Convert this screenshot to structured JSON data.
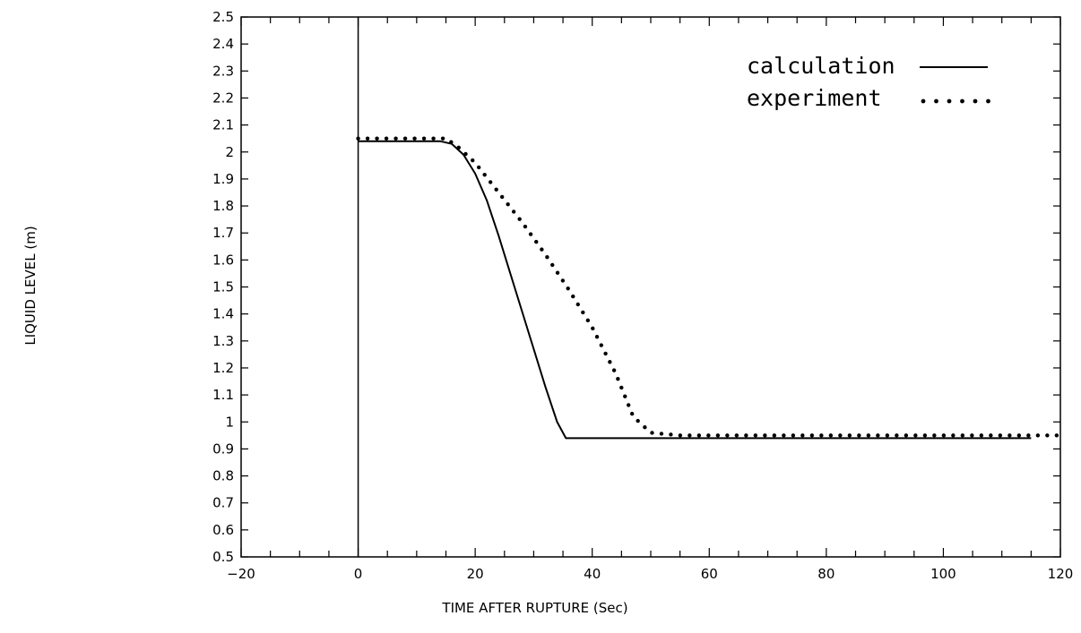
{
  "chart_data": {
    "type": "line",
    "title": "",
    "xlabel": "TIME AFTER RUPTURE (Sec)",
    "ylabel": "LIQUID LEVEL (m)",
    "xlim": [
      -20,
      120
    ],
    "ylim": [
      0.5,
      2.5
    ],
    "x_ticks": [
      "-20",
      "0",
      "20",
      "40",
      "60",
      "80",
      "100",
      "120"
    ],
    "y_ticks": [
      "0.5",
      "0.6",
      "0.7",
      "0.8",
      "0.9",
      "1",
      "1.1",
      "1.2",
      "1.3",
      "1.4",
      "1.5",
      "1.6",
      "1.7",
      "1.8",
      "1.9",
      "2",
      "2.1",
      "2.2",
      "2.3",
      "2.4",
      "2.5"
    ],
    "x_minor_step": 5,
    "vertical_reference_line_x": 0,
    "legend_position": "top-right",
    "series": [
      {
        "name": "calculation",
        "style": "solid",
        "color": "#000000",
        "points": [
          [
            0,
            2.04
          ],
          [
            14,
            2.04
          ],
          [
            16,
            2.03
          ],
          [
            18,
            1.99
          ],
          [
            20,
            1.92
          ],
          [
            22,
            1.82
          ],
          [
            24,
            1.69
          ],
          [
            26,
            1.55
          ],
          [
            28,
            1.41
          ],
          [
            30,
            1.27
          ],
          [
            32,
            1.13
          ],
          [
            34,
            1.0
          ],
          [
            35.5,
            0.94
          ],
          [
            40,
            0.94
          ],
          [
            60,
            0.94
          ],
          [
            80,
            0.94
          ],
          [
            100,
            0.94
          ],
          [
            115,
            0.94
          ]
        ]
      },
      {
        "name": "experiment",
        "style": "dotted",
        "color": "#000000",
        "points": [
          [
            0,
            2.05
          ],
          [
            15,
            2.05
          ],
          [
            17,
            2.02
          ],
          [
            20,
            1.96
          ],
          [
            24,
            1.85
          ],
          [
            28,
            1.74
          ],
          [
            32,
            1.62
          ],
          [
            36,
            1.49
          ],
          [
            40,
            1.35
          ],
          [
            44,
            1.18
          ],
          [
            47,
            1.02
          ],
          [
            50,
            0.96
          ],
          [
            55,
            0.95
          ],
          [
            70,
            0.95
          ],
          [
            90,
            0.95
          ],
          [
            110,
            0.95
          ],
          [
            120,
            0.95
          ]
        ]
      }
    ]
  }
}
